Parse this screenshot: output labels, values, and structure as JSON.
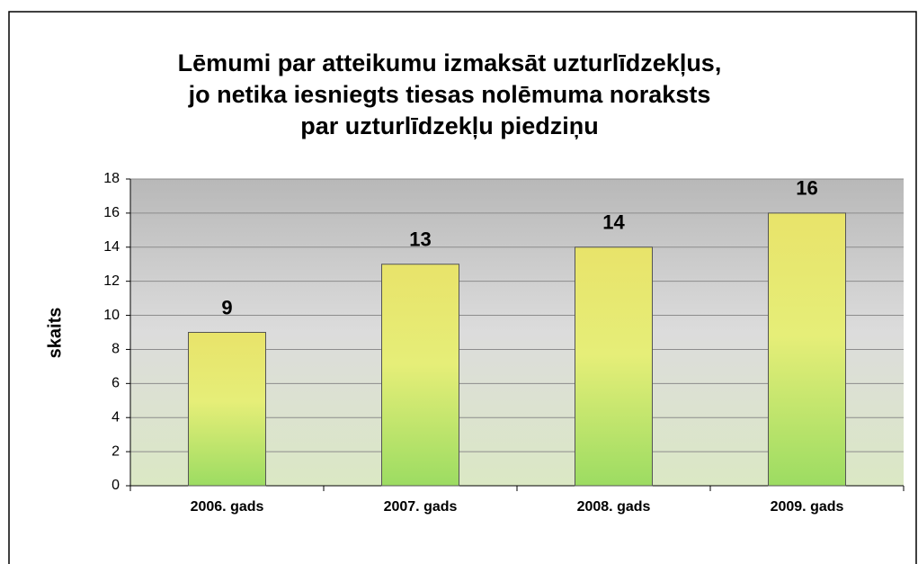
{
  "chart_data": {
    "type": "bar",
    "title": [
      "Lēmumi par atteikumu izmaksāt uzturlīdzekļus,",
      "jo netika iesniegts tiesas nolēmuma noraksts",
      "par uzturlīdzekļu piedziņu"
    ],
    "y_label": "skaits",
    "categories": [
      "2006. gads",
      "2007. gads",
      "2008. gads",
      "2009. gads"
    ],
    "values": [
      9,
      13,
      14,
      16
    ],
    "ylim": [
      0,
      18
    ],
    "yticks": [
      0,
      2,
      4,
      6,
      8,
      10,
      12,
      14,
      16,
      18
    ],
    "grid": true
  }
}
